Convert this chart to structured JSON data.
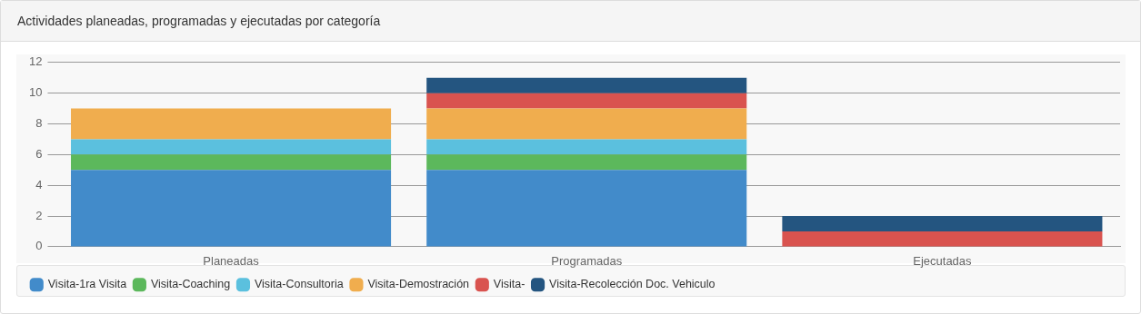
{
  "chart_data": {
    "type": "bar",
    "title": "Actividades planeadas, programadas y ejecutadas por categoría",
    "categories": [
      "Planeadas",
      "Programadas",
      "Ejecutadas"
    ],
    "stacked": true,
    "ylim": [
      0,
      12
    ],
    "yticks": [
      0,
      2,
      4,
      6,
      8,
      10,
      12
    ],
    "grid": "y",
    "legend": "bottom",
    "series": [
      {
        "name": "Visita-1ra Visita",
        "color": "#428bca",
        "values": [
          5,
          5,
          0
        ]
      },
      {
        "name": "Visita-Coaching",
        "color": "#5cb85c",
        "values": [
          1,
          1,
          0
        ]
      },
      {
        "name": "Visita-Consultoria",
        "color": "#5bc0de",
        "values": [
          1,
          1,
          0
        ]
      },
      {
        "name": "Visita-Demostración",
        "color": "#f0ad4e",
        "values": [
          2,
          2,
          0
        ]
      },
      {
        "name": "Visita-",
        "color": "#d9534f",
        "values": [
          0,
          1,
          1
        ]
      },
      {
        "name": "Visita-Recolección Doc. Vehiculo",
        "color": "#245580",
        "values": [
          0,
          1,
          1
        ]
      }
    ]
  }
}
